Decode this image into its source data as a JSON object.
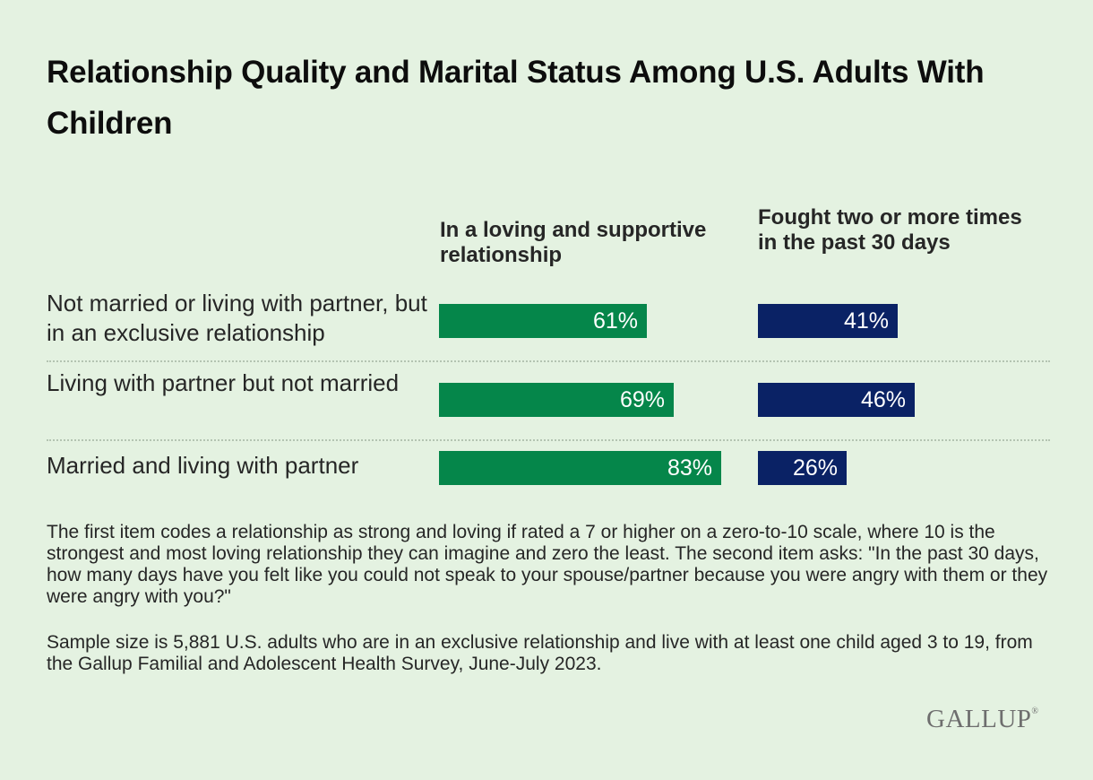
{
  "title": "Relationship Quality and Marital Status Among U.S. Adults With Children",
  "chart_data": {
    "type": "bar",
    "orientation": "horizontal",
    "categories": [
      "Not married or living with partner, but in an exclusive relationship",
      "Living with partner but not married",
      "Married and living with partner"
    ],
    "series": [
      {
        "name": "In a loving and supportive relationship",
        "values": [
          61,
          69,
          83
        ],
        "labels": [
          "61%",
          "69%",
          "83%"
        ],
        "color": "#05864a"
      },
      {
        "name": "Fought two or more times in the past 30 days",
        "values": [
          41,
          46,
          26
        ],
        "labels": [
          "41%",
          "46%",
          "26%"
        ],
        "color": "#0a2265"
      }
    ],
    "unit": "%"
  },
  "notes": [
    "The first item codes a relationship as strong and loving if rated a 7 or higher on a zero-to-10 scale, where 10 is the strongest and most loving relationship they can imagine and zero the least. The second item asks: \"In the past 30 days, how many days have you felt like you could not speak to your spouse/partner because you were angry with them or they were angry with you?\"",
    "Sample size is 5,881 U.S. adults who are in an exclusive relationship and live with at least one child aged 3 to 19, from the Gallup Familial and Adolescent Health Survey, June-July 2023."
  ],
  "logo": {
    "text": "GALLUP",
    "mark": "®"
  }
}
